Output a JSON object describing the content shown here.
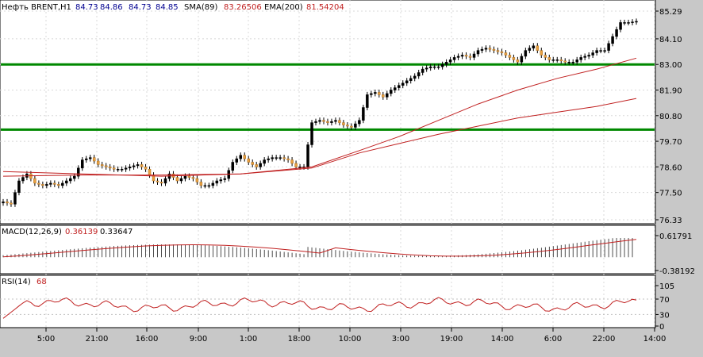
{
  "chart_data": [
    {
      "type": "candlestick",
      "header": {
        "symbol": "Нефть BRENT,H1",
        "o": "84.73",
        "h": "84.86",
        "l": "84.73",
        "c": "84.85",
        "sma_label": "SMA(89)",
        "sma_value": "83.26506",
        "ema_label": "EMA(200)",
        "ema_value": "81.54204"
      },
      "y_ticks": [
        "85.29",
        "84.10",
        "83.00",
        "81.90",
        "80.80",
        "79.70",
        "78.60",
        "77.50",
        "76.33"
      ],
      "ylim": [
        76.33,
        85.29
      ],
      "horizontal_levels": [
        83.0,
        80.2
      ],
      "x_ticks": [
        "5:00",
        "21:00",
        "16:00",
        "9:00",
        "1:00",
        "18:00",
        "10:00",
        "3:00",
        "19:00",
        "14:00",
        "6:00",
        "22:00",
        "14:00"
      ],
      "close_path": [
        [
          0,
          77.1
        ],
        [
          2,
          77.0
        ],
        [
          4,
          78.0
        ],
        [
          6,
          78.3
        ],
        [
          8,
          77.9
        ],
        [
          10,
          77.8
        ],
        [
          12,
          77.9
        ],
        [
          14,
          77.8
        ],
        [
          16,
          78.0
        ],
        [
          18,
          78.2
        ],
        [
          20,
          78.9
        ],
        [
          22,
          79.0
        ],
        [
          24,
          78.7
        ],
        [
          26,
          78.6
        ],
        [
          28,
          78.5
        ],
        [
          30,
          78.5
        ],
        [
          32,
          78.6
        ],
        [
          34,
          78.7
        ],
        [
          36,
          78.5
        ],
        [
          38,
          78.0
        ],
        [
          40,
          77.9
        ],
        [
          42,
          78.3
        ],
        [
          44,
          78.0
        ],
        [
          46,
          78.2
        ],
        [
          48,
          78.1
        ],
        [
          50,
          77.8
        ],
        [
          52,
          77.8
        ],
        [
          54,
          78.0
        ],
        [
          56,
          78.1
        ],
        [
          58,
          78.8
        ],
        [
          60,
          79.1
        ],
        [
          62,
          78.8
        ],
        [
          64,
          78.6
        ],
        [
          66,
          78.9
        ],
        [
          68,
          79.0
        ],
        [
          70,
          79.0
        ],
        [
          72,
          78.9
        ],
        [
          74,
          78.6
        ],
        [
          76,
          78.6
        ],
        [
          78,
          80.5
        ],
        [
          80,
          80.6
        ],
        [
          82,
          80.5
        ],
        [
          84,
          80.6
        ],
        [
          86,
          80.4
        ],
        [
          88,
          80.3
        ],
        [
          90,
          80.6
        ],
        [
          92,
          81.7
        ],
        [
          94,
          81.8
        ],
        [
          96,
          81.6
        ],
        [
          98,
          81.9
        ],
        [
          100,
          82.1
        ],
        [
          102,
          82.3
        ],
        [
          104,
          82.5
        ],
        [
          106,
          82.8
        ],
        [
          108,
          82.9
        ],
        [
          110,
          82.9
        ],
        [
          112,
          83.1
        ],
        [
          114,
          83.3
        ],
        [
          116,
          83.4
        ],
        [
          118,
          83.3
        ],
        [
          120,
          83.6
        ],
        [
          122,
          83.7
        ],
        [
          124,
          83.6
        ],
        [
          126,
          83.5
        ],
        [
          128,
          83.3
        ],
        [
          130,
          83.1
        ],
        [
          132,
          83.6
        ],
        [
          134,
          83.8
        ],
        [
          136,
          83.4
        ],
        [
          138,
          83.2
        ],
        [
          140,
          83.2
        ],
        [
          142,
          83.1
        ],
        [
          144,
          83.1
        ],
        [
          146,
          83.3
        ],
        [
          148,
          83.4
        ],
        [
          150,
          83.6
        ],
        [
          152,
          83.6
        ],
        [
          154,
          84.2
        ],
        [
          156,
          84.8
        ],
        [
          158,
          84.8
        ],
        [
          160,
          84.85
        ]
      ],
      "sma_path": [
        [
          0,
          78.4
        ],
        [
          20,
          78.3
        ],
        [
          40,
          78.2
        ],
        [
          60,
          78.3
        ],
        [
          78,
          78.6
        ],
        [
          90,
          79.3
        ],
        [
          100,
          79.9
        ],
        [
          110,
          80.6
        ],
        [
          120,
          81.3
        ],
        [
          130,
          81.9
        ],
        [
          140,
          82.4
        ],
        [
          150,
          82.8
        ],
        [
          160,
          83.27
        ]
      ],
      "ema_path": [
        [
          0,
          78.2
        ],
        [
          20,
          78.25
        ],
        [
          40,
          78.25
        ],
        [
          60,
          78.3
        ],
        [
          78,
          78.55
        ],
        [
          90,
          79.2
        ],
        [
          100,
          79.6
        ],
        [
          110,
          80.0
        ],
        [
          120,
          80.35
        ],
        [
          130,
          80.7
        ],
        [
          140,
          80.95
        ],
        [
          150,
          81.2
        ],
        [
          160,
          81.54
        ]
      ]
    },
    {
      "type": "histogram",
      "label": "MACD(12,26,9)",
      "value1": "0.36139",
      "value2": "0.33647",
      "y_ticks": [
        "0.61791",
        "-0.38192"
      ],
      "ylim": [
        -0.38192,
        0.61791
      ]
    },
    {
      "type": "line",
      "label": "RSI(14)",
      "value": "68",
      "y_ticks": [
        "105",
        "70",
        "30",
        "0"
      ],
      "ylim": [
        0,
        105
      ]
    }
  ]
}
